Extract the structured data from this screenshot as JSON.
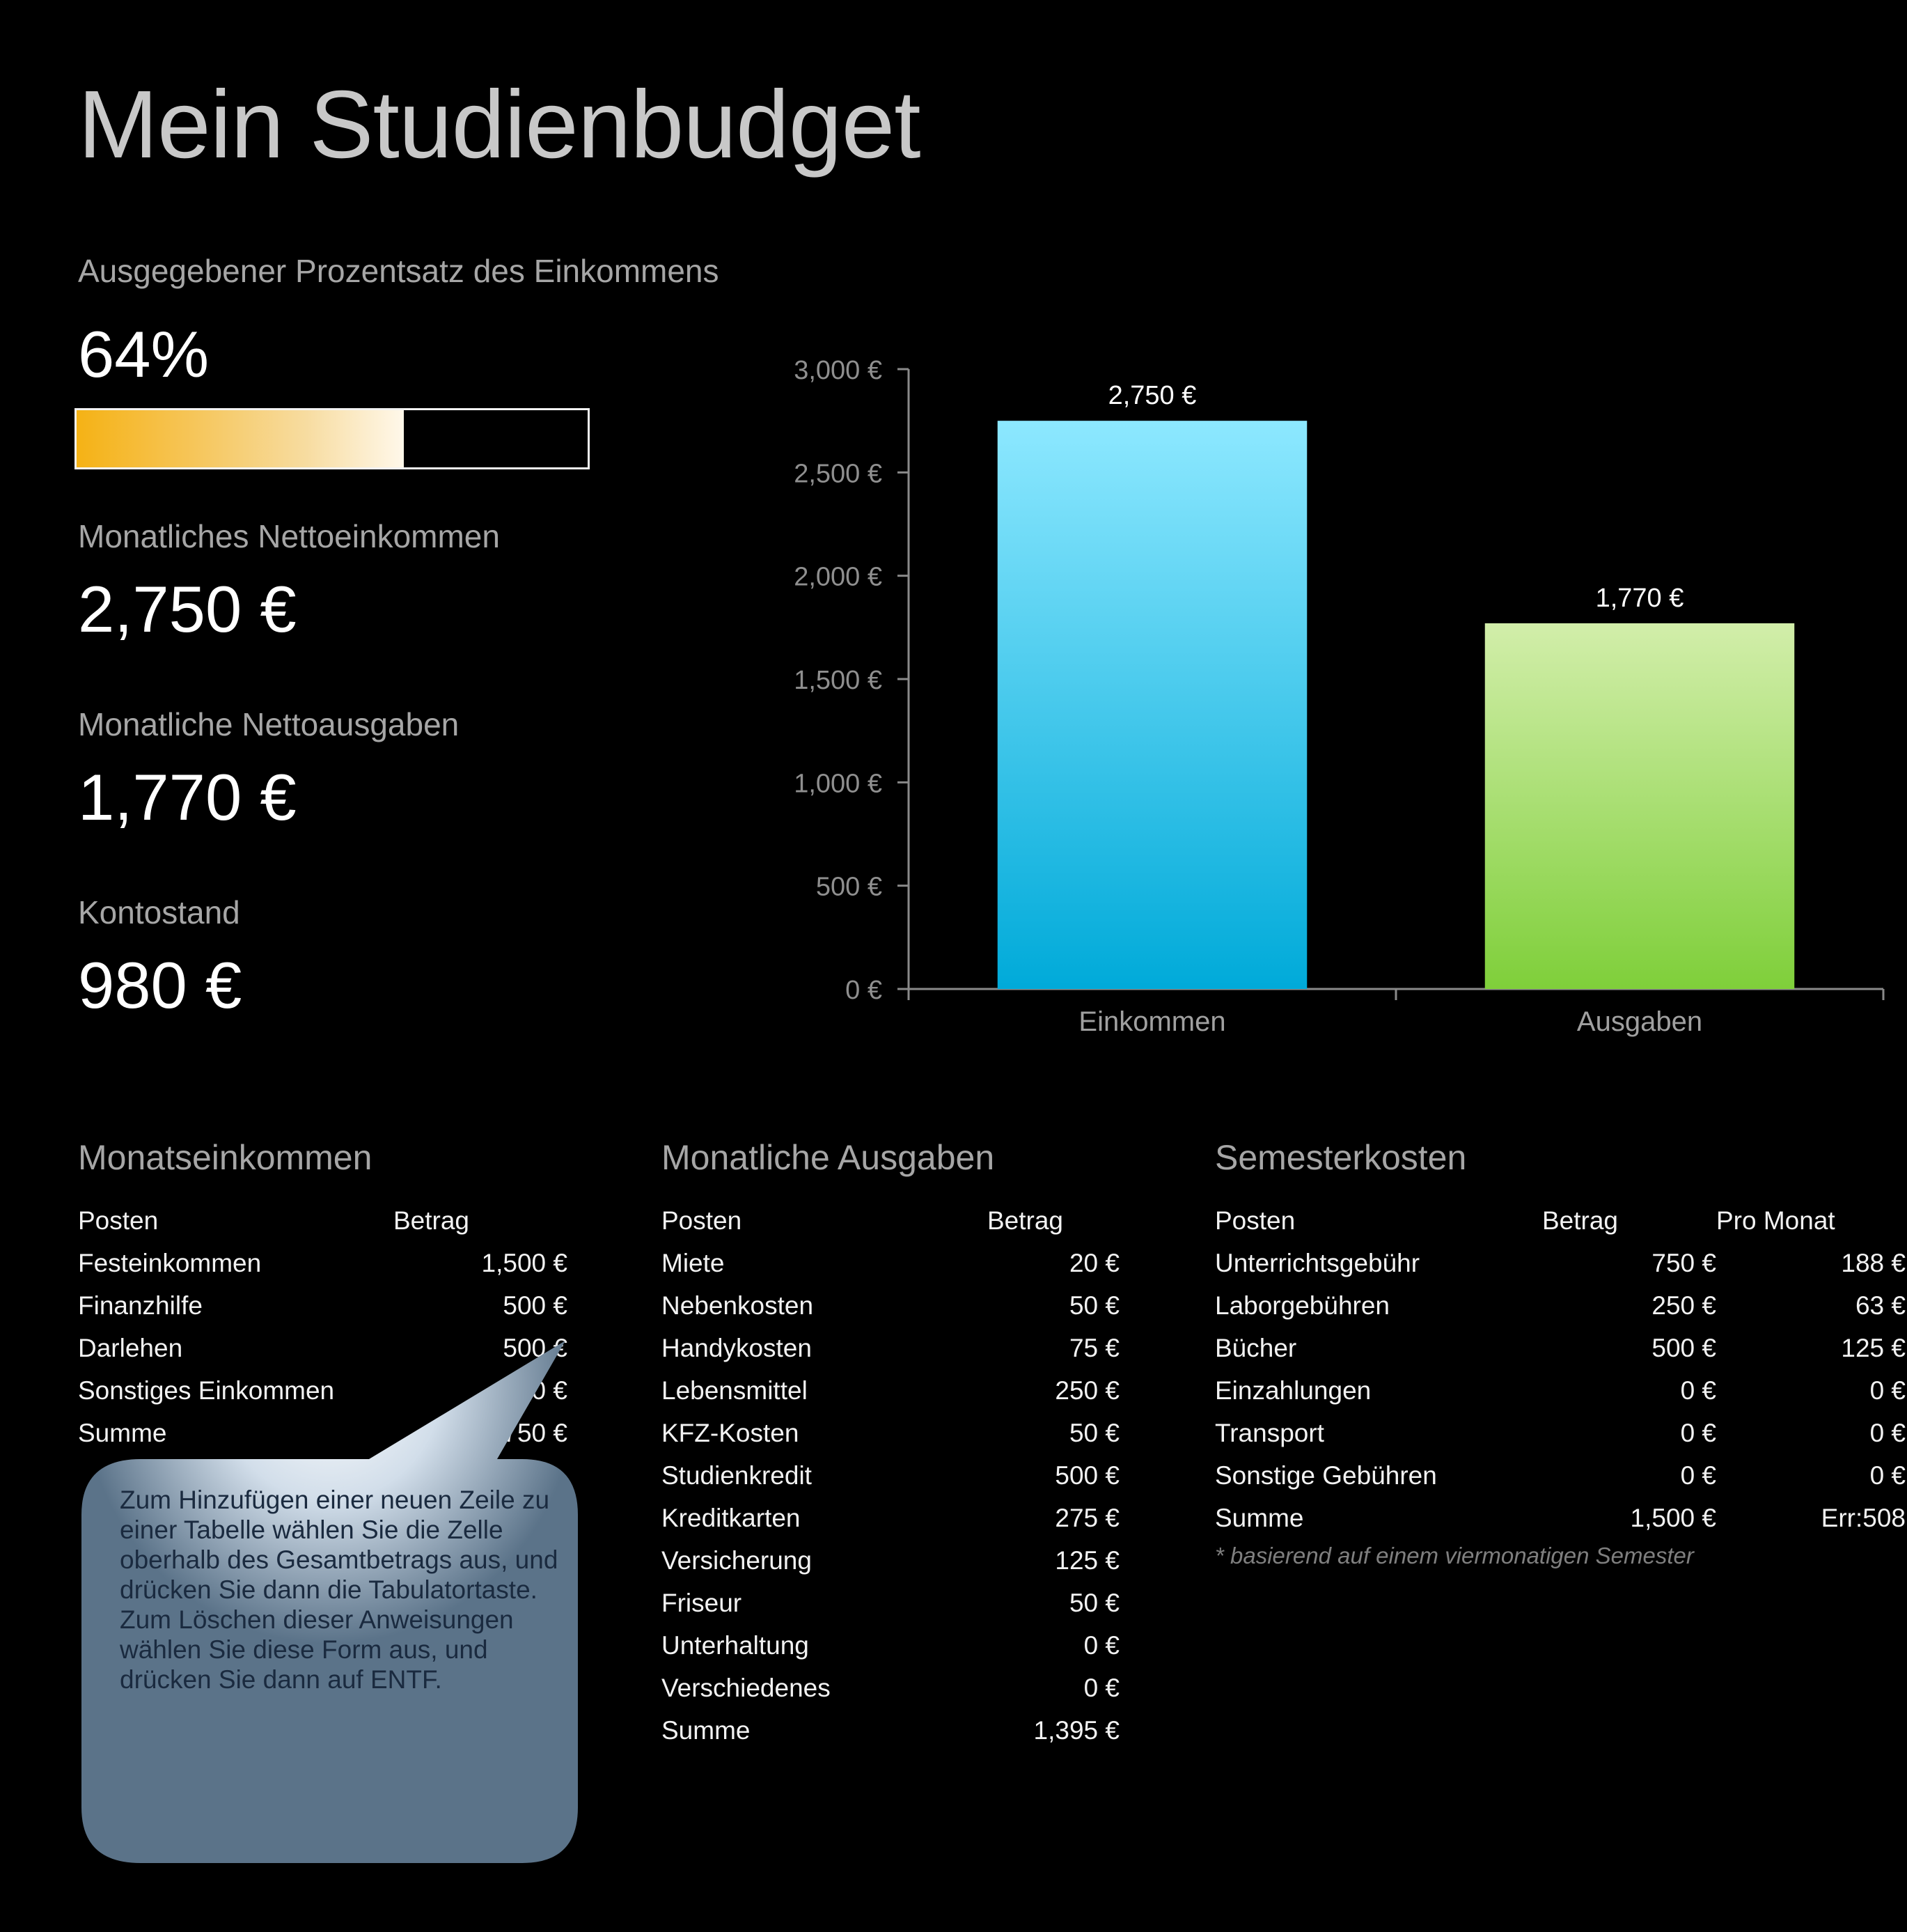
{
  "title": "Mein Studienbudget",
  "summary": {
    "percent_label": "Ausgegebener Prozentsatz des Einkommens",
    "percent_value": "64%",
    "percent_fraction": 0.64,
    "income_label": "Monatliches Nettoeinkommen",
    "income_value": "2,750 €",
    "expenses_label": "Monatliche Nettoausgaben",
    "expenses_value": "1,770 €",
    "balance_label": "Kontostand",
    "balance_value": "980 €"
  },
  "chart_data": {
    "type": "bar",
    "categories": [
      "Einkommen",
      "Ausgaben"
    ],
    "values": [
      2750,
      1770
    ],
    "data_labels": [
      "2,750 €",
      "1,770 €"
    ],
    "y_ticks": [
      "0 €",
      "500 €",
      "1,000 €",
      "1,500 €",
      "2,000 €",
      "2,500 €",
      "3,000 €"
    ],
    "ylim": [
      0,
      3000
    ],
    "colors": [
      "#29b6e6",
      "#a6e27a"
    ],
    "grid": false,
    "title": "",
    "xlabel": "",
    "ylabel": ""
  },
  "income": {
    "title": "Monatseinkommen",
    "headers": [
      "Posten",
      "Betrag"
    ],
    "rows": [
      [
        "Festeinkommen",
        "1,500 €"
      ],
      [
        "Finanzhilfe",
        "500 €"
      ],
      [
        "Darlehen",
        "500 €"
      ],
      [
        "Sonstiges Einkommen",
        "250 €"
      ],
      [
        "Summe",
        "2,750 €"
      ]
    ]
  },
  "expenses": {
    "title": "Monatliche Ausgaben",
    "headers": [
      "Posten",
      "Betrag"
    ],
    "rows": [
      [
        "Miete",
        "20 €"
      ],
      [
        "Nebenkosten",
        "50 €"
      ],
      [
        "Handykosten",
        "75 €"
      ],
      [
        "Lebensmittel",
        "250 €"
      ],
      [
        "KFZ-Kosten",
        "50 €"
      ],
      [
        "Studienkredit",
        "500 €"
      ],
      [
        "Kreditkarten",
        "275 €"
      ],
      [
        "Versicherung",
        "125 €"
      ],
      [
        "Friseur",
        "50 €"
      ],
      [
        "Unterhaltung",
        "0 €"
      ],
      [
        "Verschiedenes",
        "0 €"
      ],
      [
        "Summe",
        "1,395 €"
      ]
    ]
  },
  "semester": {
    "title": "Semesterkosten",
    "headers": [
      "Posten",
      "Betrag",
      "Pro Monat"
    ],
    "rows": [
      [
        "Unterrichtsgebühr",
        "750 €",
        "188 €"
      ],
      [
        "Laborgebühren",
        "250 €",
        "63 €"
      ],
      [
        "Bücher",
        "500 €",
        "125 €"
      ],
      [
        "Einzahlungen",
        "0 €",
        "0 €"
      ],
      [
        "Transport",
        "0 €",
        "0 €"
      ],
      [
        "Sonstige Gebühren",
        "0 €",
        "0 €"
      ],
      [
        "Summe",
        "1,500 €",
        "Err:508"
      ]
    ],
    "note": "* basierend auf einem viermonatigen Semester"
  },
  "callout": {
    "text": "Zum Hinzufügen einer neuen Zeile zu einer Tabelle wählen Sie die Zelle oberhalb des Gesamtbetrags aus, und drücken Sie dann die Tabulatortaste. Zum Löschen dieser Anweisungen wählen Sie diese Form aus, und drücken Sie dann auf ENTF."
  }
}
